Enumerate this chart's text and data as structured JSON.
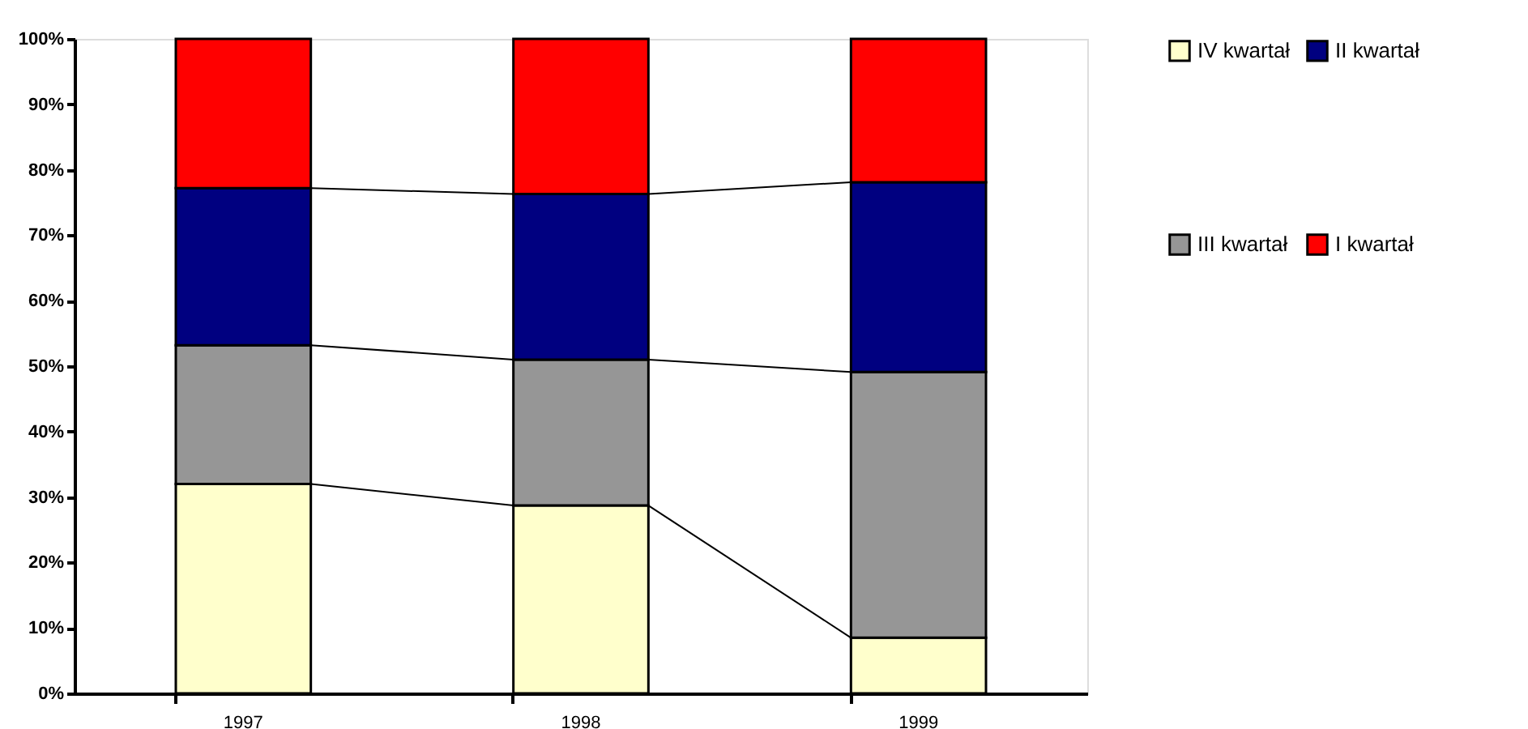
{
  "chart_data": {
    "type": "bar",
    "stacked": true,
    "categories": [
      "1997",
      "1998",
      "1999"
    ],
    "series": [
      {
        "name": "IV kwartał",
        "color": "#ffffcc",
        "values": [
          32,
          28.7,
          8.5
        ]
      },
      {
        "name": "III kwartał",
        "color": "#969696",
        "values": [
          21.2,
          22.3,
          40.6
        ]
      },
      {
        "name": "II kwartał",
        "color": "#000080",
        "values": [
          24,
          25.3,
          29
        ]
      },
      {
        "name": "I kwartał",
        "color": "#ff0000",
        "values": [
          22.8,
          23.7,
          21.9
        ]
      }
    ],
    "ylim": [
      0,
      100
    ],
    "yticks": [
      {
        "value": 0,
        "label": "0%"
      },
      {
        "value": 10,
        "label": "10%"
      },
      {
        "value": 20,
        "label": "20%"
      },
      {
        "value": 30,
        "label": "30%"
      },
      {
        "value": 40,
        "label": "40%"
      },
      {
        "value": 50,
        "label": "50%"
      },
      {
        "value": 60,
        "label": "60%"
      },
      {
        "value": 70,
        "label": "70%"
      },
      {
        "value": 80,
        "label": "80%"
      },
      {
        "value": 90,
        "label": "90%"
      },
      {
        "value": 100,
        "label": "100%"
      }
    ],
    "grid": false,
    "legend": "right"
  }
}
